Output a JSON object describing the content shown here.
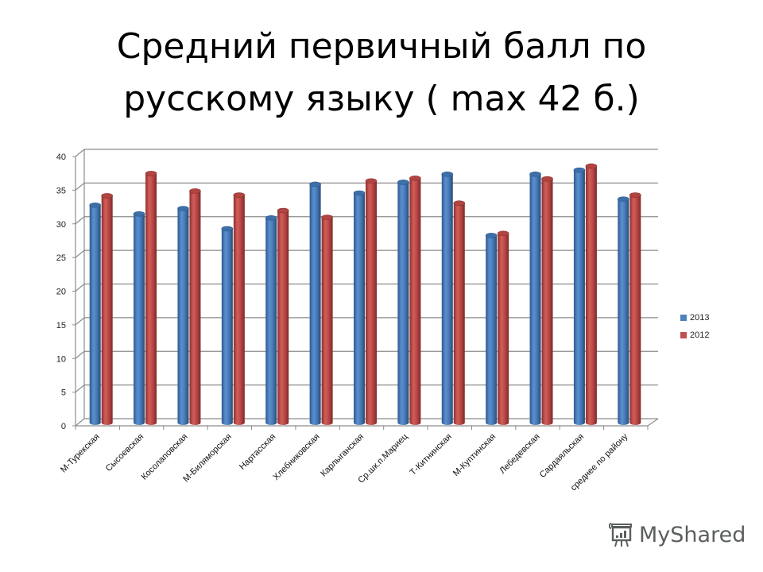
{
  "title": {
    "line1": "Средний первичный балл по",
    "line2": "русскому языку ( max 42 б.)"
  },
  "colors": {
    "series_2013": "#4a7ebb",
    "series_2012": "#be4b48",
    "grid": "#8c8c8c",
    "text": "#222222"
  },
  "legend": {
    "items": [
      {
        "label": "2013",
        "color": "#4f81bd"
      },
      {
        "label": "2012",
        "color": "#c0504d"
      }
    ]
  },
  "watermark": {
    "text": "MyShared"
  },
  "chart_data": {
    "type": "bar",
    "title": "Средний первичный балл по русскому языку ( max 42 б.)",
    "xlabel": "",
    "ylabel": "",
    "ylim": [
      0,
      40
    ],
    "yticks": [
      0,
      5,
      10,
      15,
      20,
      25,
      30,
      35,
      40
    ],
    "grid": true,
    "legend_position": "right",
    "style": "3d-cylinder",
    "categories": [
      "М-Турекская",
      "Сысоевская",
      "Косолаповская",
      "М-Биляморская",
      "Нартасская",
      "Хлебниковская",
      "Карлыганская",
      "Ср.шк.п.Мариец",
      "Т-Китнинская",
      "М-Куптинская",
      "Лебедевская",
      "Сардаяльская",
      "среднее по району"
    ],
    "series": [
      {
        "name": "2013",
        "values": [
          32.3,
          31.0,
          31.8,
          28.8,
          30.4,
          35.4,
          34.1,
          35.7,
          36.9,
          27.8,
          36.9,
          37.5,
          33.2
        ]
      },
      {
        "name": "2012",
        "values": [
          33.7,
          37.0,
          34.4,
          33.8,
          31.5,
          30.5,
          35.9,
          36.3,
          32.6,
          28.1,
          36.2,
          38.1,
          33.8
        ]
      }
    ]
  }
}
